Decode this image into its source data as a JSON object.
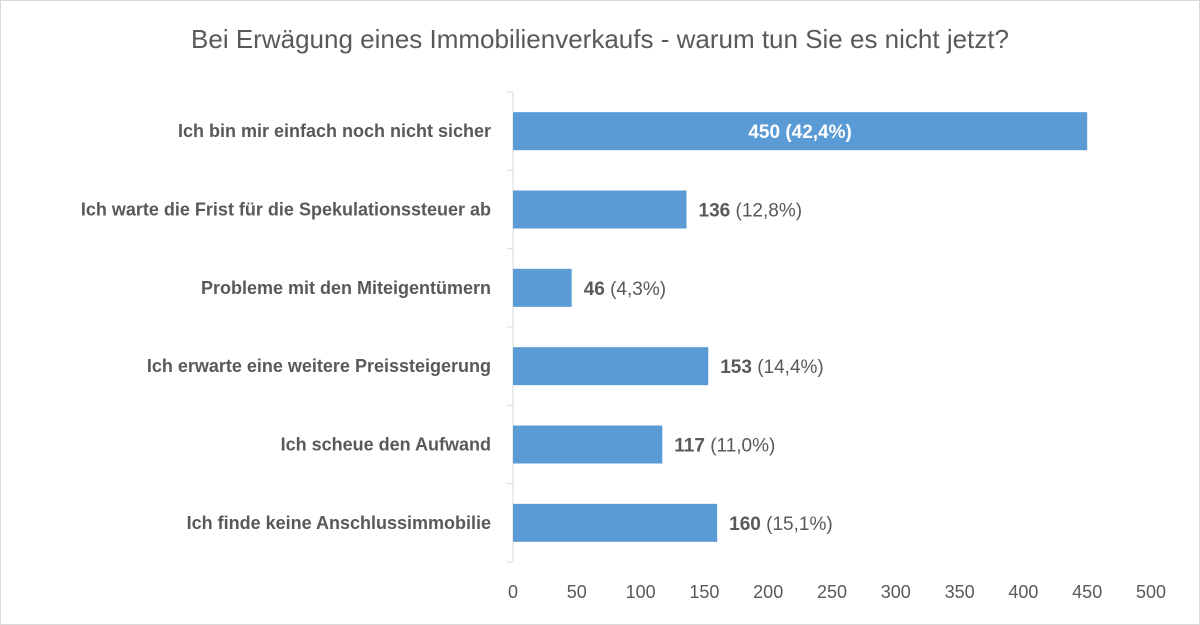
{
  "chart_data": {
    "type": "bar",
    "orientation": "horizontal",
    "title": "Bei Erwägung eines Immobilienverkaufs - warum tun Sie es nicht jetzt?",
    "categories": [
      "Ich bin mir einfach noch nicht sicher",
      "Ich warte die Frist für die Spekulationssteuer ab",
      "Probleme mit den Miteigentümern",
      "Ich erwarte eine weitere Preissteigerung",
      "Ich scheue den Aufwand",
      "Ich finde keine Anschlussimmobilie"
    ],
    "values": [
      450,
      136,
      46,
      153,
      117,
      160
    ],
    "data_labels": [
      {
        "value": "450",
        "percent": "(42,4%)"
      },
      {
        "value": "136",
        "percent": "(12,8%)"
      },
      {
        "value": "46",
        "percent": "(4,3%)"
      },
      {
        "value": "153",
        "percent": "(14,4%)"
      },
      {
        "value": "117",
        "percent": "(11,0%)"
      },
      {
        "value": "160",
        "percent": "(15,1%)"
      }
    ],
    "xlim": [
      0,
      500
    ],
    "xticks": [
      "0",
      "50",
      "100",
      "150",
      "200",
      "250",
      "300",
      "350",
      "400",
      "450",
      "500"
    ],
    "grid": false,
    "legend": "none",
    "bar_color": "#5b9bd5",
    "label_color": "#595959",
    "inside_label_color": "#ffffff"
  }
}
